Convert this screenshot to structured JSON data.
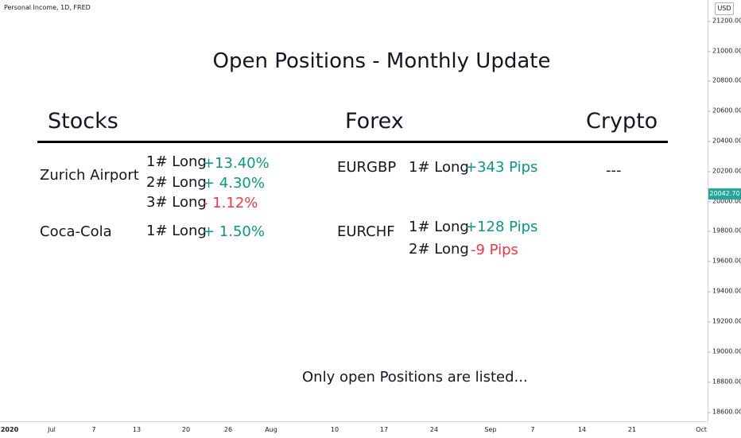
{
  "chart": {
    "symbol_label": "Personal Income, 1D, FRED",
    "currency": "USD",
    "current_price": "20042.70",
    "price_ticks": [
      "21200.00",
      "21000.00",
      "20800.00",
      "20600.00",
      "20400.00",
      "20200.00",
      "20000.00",
      "19800.00",
      "19600.00",
      "19400.00",
      "19200.00",
      "19000.00",
      "18800.00",
      "18600.00"
    ],
    "time_ticks": [
      "2020",
      "Jul",
      "7",
      "13",
      "20",
      "26",
      "Aug",
      "10",
      "17",
      "24",
      "Sep",
      "7",
      "14",
      "21",
      "Oct"
    ],
    "colors": {
      "positive": "#089981",
      "negative": "#f23645",
      "price_badge": "#26a69a"
    }
  },
  "overlay": {
    "title": "Open Positions - Monthly Update",
    "headers": {
      "stocks": "Stocks",
      "forex": "Forex",
      "crypto": "Crypto"
    },
    "stocks": [
      {
        "name": "Zurich Airport",
        "positions": [
          {
            "label": "1# Long",
            "value": "+13.40%"
          },
          {
            "label": "2# Long",
            "value": "+ 4.30%"
          },
          {
            "label": "3# Long",
            "value": "- 1.12%"
          }
        ]
      },
      {
        "name": "Coca-Cola",
        "positions": [
          {
            "label": "1# Long",
            "value": "+ 1.50%"
          }
        ]
      }
    ],
    "forex": [
      {
        "name": "EURGBP",
        "positions": [
          {
            "label": "1# Long",
            "value": "+343 Pips"
          }
        ]
      },
      {
        "name": "EURCHF",
        "positions": [
          {
            "label": "1# Long",
            "value": "+128 Pips"
          },
          {
            "label": "2# Long",
            "value": "-9 Pips"
          }
        ]
      }
    ],
    "crypto": "---",
    "footer": "Only open Positions are listed..."
  }
}
